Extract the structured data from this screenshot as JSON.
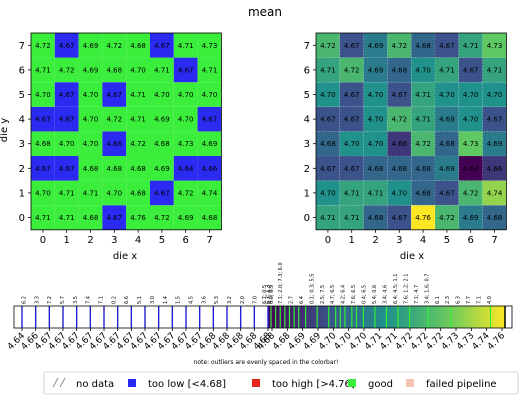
{
  "chart_data": {
    "type": "heatmap",
    "title": "mean",
    "xlabel": "die x",
    "ylabel": "die y",
    "x_ticks": [
      "0",
      "1",
      "2",
      "3",
      "4",
      "5",
      "6",
      "7"
    ],
    "y_ticks": [
      "0",
      "1",
      "2",
      "3",
      "4",
      "5",
      "6",
      "7"
    ],
    "values": [
      [
        4.71,
        4.71,
        4.68,
        4.67,
        4.76,
        4.72,
        4.69,
        4.68
      ],
      [
        4.7,
        4.71,
        4.71,
        4.7,
        4.68,
        4.67,
        4.72,
        4.74
      ],
      [
        4.67,
        4.67,
        4.68,
        4.68,
        4.68,
        4.69,
        4.64,
        4.66
      ],
      [
        4.68,
        4.7,
        4.7,
        4.66,
        4.72,
        4.68,
        4.73,
        4.69
      ],
      [
        4.67,
        4.67,
        4.7,
        4.72,
        4.71,
        4.69,
        4.7,
        4.67
      ],
      [
        4.7,
        4.67,
        4.7,
        4.67,
        4.71,
        4.7,
        4.7,
        4.7
      ],
      [
        4.71,
        4.72,
        4.69,
        4.68,
        4.7,
        4.71,
        4.67,
        4.71
      ],
      [
        4.72,
        4.67,
        4.69,
        4.72,
        4.68,
        4.67,
        4.71,
        4.73
      ]
    ],
    "colorbar": {
      "ticks": [
        "4.64",
        "4.66",
        "4.67",
        "4.67",
        "4.67",
        "4.67",
        "4.67",
        "4.67",
        "4.67",
        "4.67",
        "4.67",
        "4.67",
        "4.67",
        "4.67",
        "4.68",
        "4.68",
        "4.68",
        "4.68",
        "4.68",
        "4.68",
        "4.68",
        "4.69",
        "4.69",
        "4.70",
        "4.70",
        "4.70",
        "4.71",
        "4.71",
        "4.72",
        "4.72",
        "4.72",
        "4.73",
        "4.73",
        "4.74",
        "4.76"
      ],
      "top_labels": [
        "6.2",
        "3.3",
        "7.2",
        "5.7",
        "3.5",
        "7.4",
        "7.1",
        "0.2",
        "6.6",
        "5.1",
        "3.0",
        "1.4",
        "1.5",
        "4.5",
        "3.6",
        "5.3",
        "3.2",
        "2.0",
        "7.0",
        "4.3; 0.6",
        "7.1; 2.0; 7.3; 6.0",
        "2.7",
        "6.4",
        "0.1; 0.3; 5.5",
        "2.5; 7.5",
        "4.7; 6.5",
        "4.2; 6.4",
        "7.6; 6.5",
        "0.4; 6.5",
        "5.4; 0.6",
        "3.4; 4.6",
        "6.4; 4.5; 1.1",
        "7.6; 1.2; 2.1",
        "7.1; 4.7",
        "3.4; 1.6; 0.7",
        "6.1",
        "2.3",
        "6.3",
        "7.7",
        "7.1",
        "4.0"
      ],
      "overflow_labels": [
        "6.7; 0.5",
        "6.7; 1.3",
        "0.0; 0.5"
      ],
      "note": "note: outliers are evenly spaced in the colorbar!"
    },
    "legend": [
      {
        "label": "no data",
        "color": "#ffffff"
      },
      {
        "label": "too low [<4.68]",
        "color": "#2a2af0"
      },
      {
        "label": "too high [>4.76]",
        "color": "#e8261f"
      },
      {
        "label": "good",
        "color": "#3bee3b"
      },
      {
        "label": "failed pipeline",
        "color": "#f8c3b5"
      }
    ]
  },
  "colors": {
    "good": "#3bee3b",
    "too_low": "#2a2af0",
    "too_high": "#e8261f",
    "failed": "#f8c3b5"
  }
}
